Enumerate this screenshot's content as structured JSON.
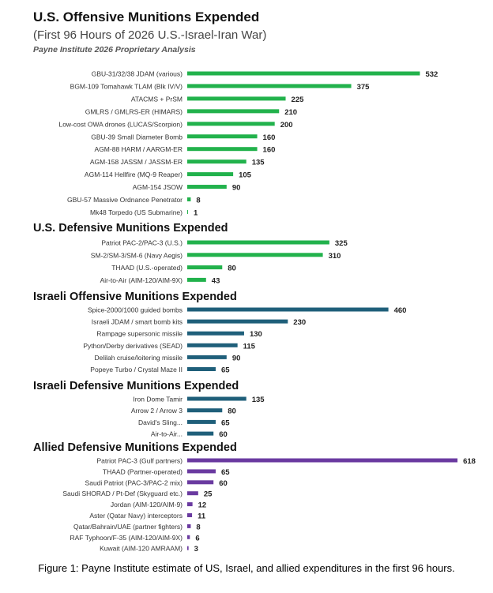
{
  "header": {
    "title": "U.S. Offensive Munitions Expended",
    "subtitle": "(First 96 Hours of 2026 U.S.-Israel-Iran War)",
    "source": "Payne Institute 2026 Proprietary Analysis"
  },
  "caption": "Figure 1: Payne Institute estimate of US, Israel, and allied expenditures in the first 96 hours.",
  "colors": {
    "us": "#22b24c",
    "israel": "#1f5f7a",
    "allied": "#6a3aa0"
  },
  "chart_data": [
    {
      "type": "bar",
      "orientation": "horizontal",
      "title": "U.S. Offensive Munitions Expended",
      "color_key": "us",
      "categories": [
        "GBU-31/32/38 JDAM (various)",
        "BGM-109 Tomahawk TLAM (Blk IV/V)",
        "ATACMS + PrSM",
        "GMLRS / GMLRS-ER (HIMARS)",
        "Low-cost OWA drones (LUCAS/Scorpion)",
        "GBU-39 Small Diameter Bomb",
        "AGM-88 HARM / AARGM-ER",
        "AGM-158 JASSM / JASSM-ER",
        "AGM-114 Hellfire (MQ-9 Reaper)",
        "AGM-154 JSOW",
        "GBU-57 Massive Ordnance Penetrator",
        "Mk48 Torpedo (US Submarine)"
      ],
      "values": [
        532,
        375,
        225,
        210,
        200,
        160,
        160,
        135,
        105,
        90,
        8,
        1
      ]
    },
    {
      "type": "bar",
      "orientation": "horizontal",
      "title": "U.S. Defensive Munitions Expended",
      "color_key": "us",
      "categories": [
        "Patriot PAC-2/PAC-3 (U.S.)",
        "SM-2/SM-3/SM-6 (Navy Aegis)",
        "THAAD (U.S.-operated)",
        "Air-to-Air (AIM-120/AIM-9X)"
      ],
      "values": [
        325,
        310,
        80,
        43
      ]
    },
    {
      "type": "bar",
      "orientation": "horizontal",
      "title": "Israeli Offensive Munitions Expended",
      "color_key": "israel",
      "categories": [
        "Spice-2000/1000 guided bombs",
        "Israeli JDAM / smart bomb kits",
        "Rampage supersonic missile",
        "Python/Derby derivatives (SEAD)",
        "Delilah cruise/loitering missile",
        "Popeye Turbo / Crystal Maze II"
      ],
      "values": [
        460,
        230,
        130,
        115,
        90,
        65
      ]
    },
    {
      "type": "bar",
      "orientation": "horizontal",
      "title": "Israeli Defensive Munitions Expended",
      "color_key": "israel",
      "categories": [
        "Iron Dome Tamir",
        "Arrow 2 / Arrow 3",
        "David's Sling...",
        "Air-to-Air..."
      ],
      "values": [
        135,
        80,
        65,
        60
      ]
    },
    {
      "type": "bar",
      "orientation": "horizontal",
      "title": "Allied Defensive Munitions Expended",
      "color_key": "allied",
      "categories": [
        "Patriot PAC-3 (Gulf partners)",
        "THAAD (Partner-operated)",
        "Saudi Patriot (PAC-3/PAC-2 mix)",
        "Saudi SHORAD / Pt-Def (Skyguard etc.)",
        "Jordan (AIM-120/AIM-9)",
        "Aster (Qatar Navy) interceptors",
        "Qatar/Bahrain/UAE (partner fighters)",
        "RAF Typhoon/F-35 (AIM-120/AIM-9X)",
        "Kuwait (AIM-120 AMRAAM)"
      ],
      "values": [
        618,
        65,
        60,
        25,
        12,
        11,
        8,
        6,
        3
      ]
    }
  ]
}
